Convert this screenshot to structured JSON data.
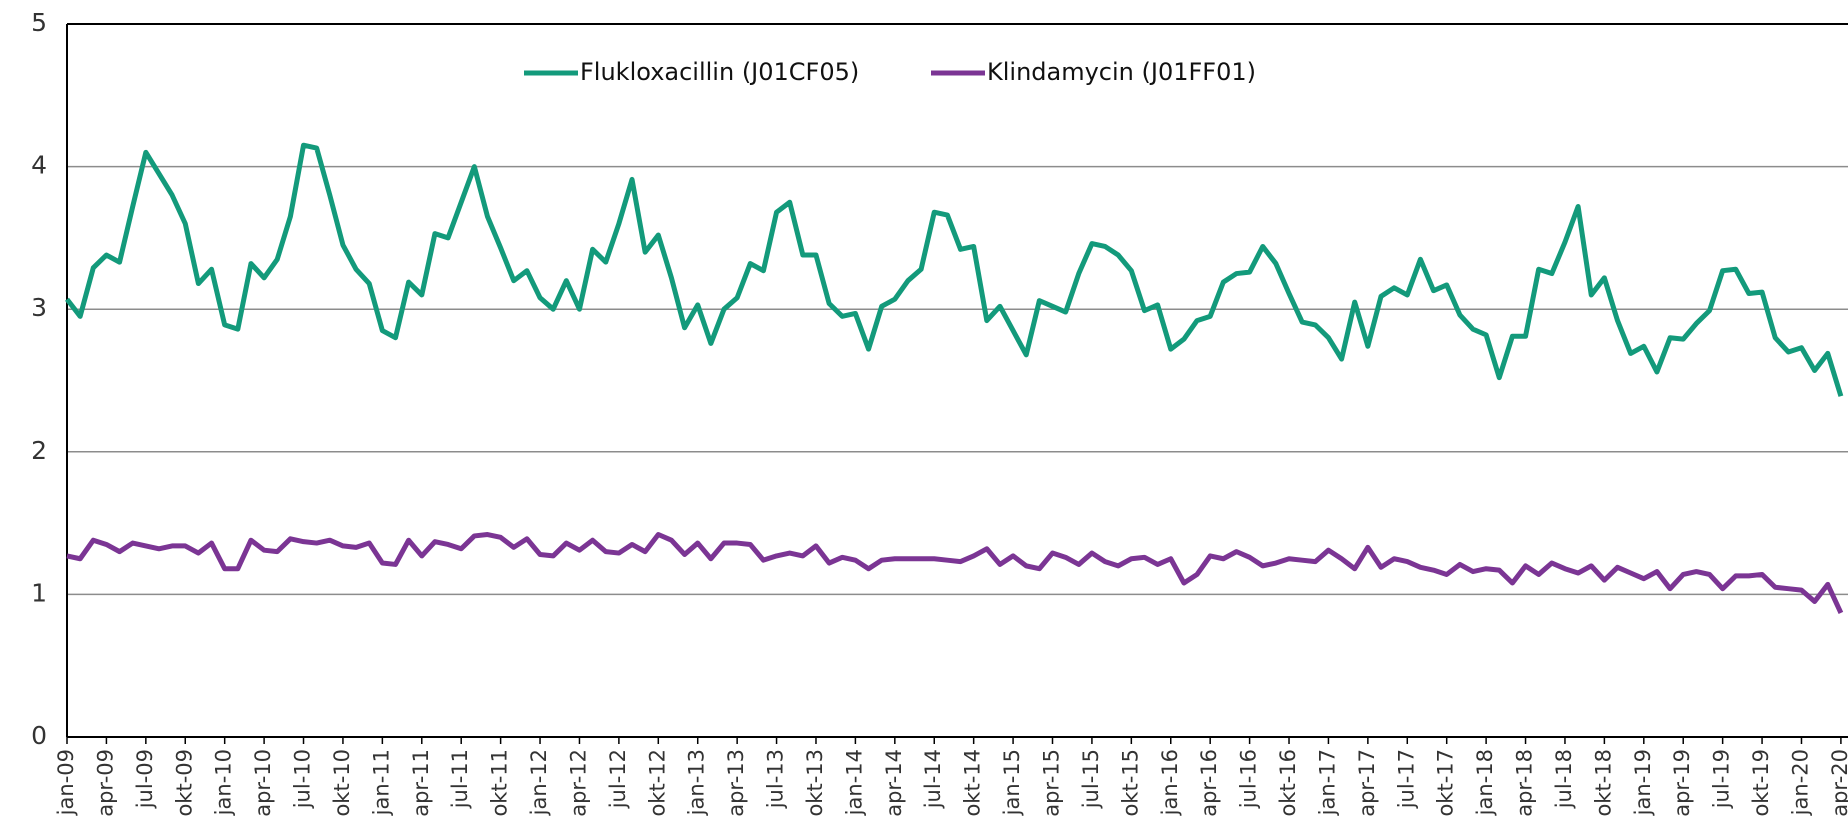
{
  "chart_data": {
    "type": "line",
    "categories": [
      "jan-09",
      null,
      null,
      "apr-09",
      null,
      null,
      "jul-09",
      null,
      null,
      "okt-09",
      null,
      null,
      "jan-10",
      null,
      null,
      "apr-10",
      null,
      null,
      "jul-10",
      null,
      null,
      "okt-10",
      null,
      null,
      "jan-11",
      null,
      null,
      "apr-11",
      null,
      null,
      "jul-11",
      null,
      null,
      "okt-11",
      null,
      null,
      "jan-12",
      null,
      null,
      "apr-12",
      null,
      null,
      "jul-12",
      null,
      null,
      "okt-12",
      null,
      null,
      "jan-13",
      null,
      null,
      "apr-13",
      null,
      null,
      "jul-13",
      null,
      null,
      "okt-13",
      null,
      null,
      "jan-14",
      null,
      null,
      "apr-14",
      null,
      null,
      "jul-14",
      null,
      null,
      "okt-14",
      null,
      null,
      "jan-15",
      null,
      null,
      "apr-15",
      null,
      null,
      "jul-15",
      null,
      null,
      "okt-15",
      null,
      null,
      "jan-16",
      null,
      null,
      "apr-16",
      null,
      null,
      "jul-16",
      null,
      null,
      "okt-16",
      null,
      null,
      "jan-17",
      null,
      null,
      "apr-17",
      null,
      null,
      "jul-17",
      null,
      null,
      "okt-17",
      null,
      null,
      "jan-18",
      null,
      null,
      "apr-18",
      null,
      null,
      "jul-18",
      null,
      null,
      "okt-18",
      null,
      null,
      "jan-19",
      null,
      null,
      "apr-19",
      null,
      null,
      "jul-19",
      null,
      null,
      "okt-19",
      null,
      null,
      "jan-20",
      null,
      null,
      "apr-20"
    ],
    "series": [
      {
        "name": "Flukloxacillin (J01CF05)",
        "color": "#139a7b",
        "values": [
          3.07,
          2.95,
          3.29,
          3.38,
          3.33,
          3.72,
          4.1,
          3.95,
          3.8,
          3.6,
          3.18,
          3.28,
          2.89,
          2.86,
          3.32,
          3.22,
          3.35,
          3.65,
          4.15,
          4.13,
          3.8,
          3.45,
          3.28,
          3.18,
          2.85,
          2.8,
          3.19,
          3.1,
          3.53,
          3.5,
          3.75,
          4.0,
          3.65,
          3.43,
          3.2,
          3.27,
          3.08,
          3.0,
          3.2,
          3.0,
          3.42,
          3.33,
          3.6,
          3.91,
          3.4,
          3.52,
          3.22,
          2.87,
          3.03,
          2.76,
          3.0,
          3.08,
          3.32,
          3.27,
          3.68,
          3.75,
          3.38,
          3.38,
          3.04,
          2.95,
          2.97,
          2.72,
          3.02,
          3.07,
          3.2,
          3.28,
          3.68,
          3.66,
          3.42,
          3.44,
          2.92,
          3.02,
          2.85,
          2.68,
          3.06,
          3.02,
          2.98,
          3.25,
          3.46,
          3.44,
          3.38,
          3.27,
          2.99,
          3.03,
          2.72,
          2.79,
          2.92,
          2.95,
          3.19,
          3.25,
          3.26,
          3.44,
          3.32,
          3.11,
          2.91,
          2.89,
          2.8,
          2.65,
          3.05,
          2.74,
          3.09,
          3.15,
          3.1,
          3.35,
          3.13,
          3.17,
          2.96,
          2.86,
          2.82,
          2.52,
          2.81,
          2.81,
          3.28,
          3.25,
          3.47,
          3.72,
          3.1,
          3.22,
          2.92,
          2.69,
          2.74,
          2.56,
          2.8,
          2.79,
          2.9,
          2.99,
          3.27,
          3.28,
          3.11,
          3.12,
          2.8,
          2.7,
          2.73,
          2.57,
          2.69,
          2.39
        ]
      },
      {
        "name": "Klindamycin (J01FF01)",
        "color": "#7b3594",
        "values": [
          1.27,
          1.25,
          1.38,
          1.35,
          1.3,
          1.36,
          1.34,
          1.32,
          1.34,
          1.34,
          1.29,
          1.36,
          1.18,
          1.18,
          1.38,
          1.31,
          1.3,
          1.39,
          1.37,
          1.36,
          1.38,
          1.34,
          1.33,
          1.36,
          1.22,
          1.21,
          1.38,
          1.27,
          1.37,
          1.35,
          1.32,
          1.41,
          1.42,
          1.4,
          1.33,
          1.39,
          1.28,
          1.27,
          1.36,
          1.31,
          1.38,
          1.3,
          1.29,
          1.35,
          1.3,
          1.42,
          1.38,
          1.28,
          1.36,
          1.25,
          1.36,
          1.36,
          1.35,
          1.24,
          1.27,
          1.29,
          1.27,
          1.34,
          1.22,
          1.26,
          1.24,
          1.18,
          1.24,
          1.25,
          1.25,
          1.25,
          1.25,
          1.24,
          1.23,
          1.27,
          1.32,
          1.21,
          1.27,
          1.2,
          1.18,
          1.29,
          1.26,
          1.21,
          1.29,
          1.23,
          1.2,
          1.25,
          1.26,
          1.21,
          1.25,
          1.08,
          1.14,
          1.27,
          1.25,
          1.3,
          1.26,
          1.2,
          1.22,
          1.25,
          1.24,
          1.23,
          1.31,
          1.25,
          1.18,
          1.33,
          1.19,
          1.25,
          1.23,
          1.19,
          1.17,
          1.14,
          1.21,
          1.16,
          1.18,
          1.17,
          1.08,
          1.2,
          1.14,
          1.22,
          1.18,
          1.15,
          1.2,
          1.1,
          1.19,
          1.15,
          1.11,
          1.16,
          1.04,
          1.14,
          1.16,
          1.14,
          1.04,
          1.13,
          1.13,
          1.14,
          1.05,
          1.04,
          1.03,
          0.95,
          1.07,
          0.87
        ]
      }
    ],
    "ylim": [
      0,
      5
    ],
    "yticks": [
      0,
      1,
      2,
      3,
      4,
      5
    ],
    "grid": true,
    "legend": "top"
  }
}
